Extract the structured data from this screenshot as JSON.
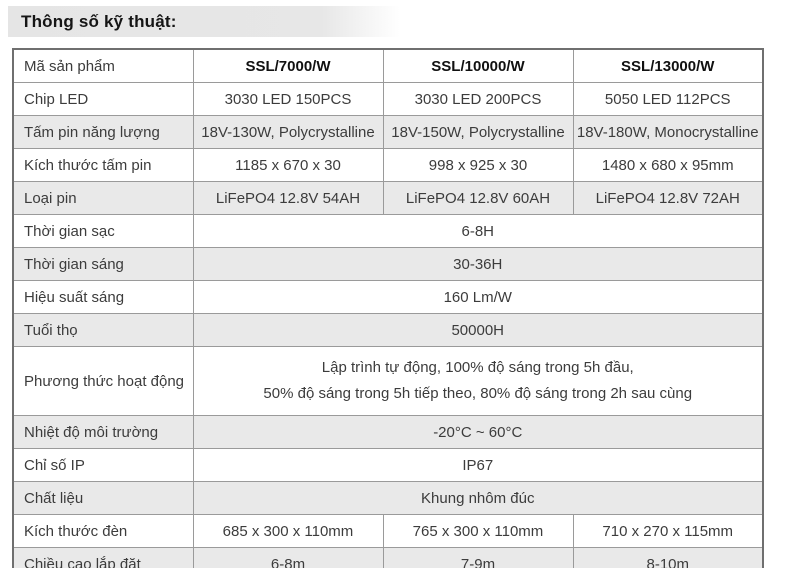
{
  "title": "Thông số kỹ thuật:",
  "colors": {
    "row_shade": "#e9e9e9",
    "border_inner": "#9a9a9a",
    "border_outer": "#6f6f6f",
    "title_bar": "#e6e6e6",
    "text": "#3c3c3c"
  },
  "table": {
    "header": {
      "label": "Mã sản phẩm",
      "columns": [
        "SSL/7000/W",
        "SSL/10000/W",
        "SSL/13000/W"
      ]
    },
    "rows": [
      {
        "label": "Chip LED",
        "shade": false,
        "values": [
          "3030 LED 150PCS",
          "3030 LED 200PCS",
          "5050 LED 112PCS"
        ]
      },
      {
        "label": "Tấm pin năng lượng",
        "shade": true,
        "values": [
          "18V-130W, Polycrystalline",
          "18V-150W, Polycrystalline",
          "18V-180W, Monocrystalline"
        ]
      },
      {
        "label": "Kích thước tấm pin",
        "shade": false,
        "values": [
          "1185 x 670 x 30",
          "998 x 925 x 30",
          "1480 x 680 x 95mm"
        ]
      },
      {
        "label": "Loại pin",
        "shade": true,
        "values": [
          "LiFePO4 12.8V 54AH",
          "LiFePO4 12.8V 60AH",
          "LiFePO4 12.8V 72AH"
        ]
      },
      {
        "label": "Thời gian sạc",
        "shade": false,
        "span": "6-8H"
      },
      {
        "label": "Thời gian sáng",
        "shade": true,
        "span": "30-36H"
      },
      {
        "label": "Hiệu suất sáng",
        "shade": false,
        "span": "160 Lm/W"
      },
      {
        "label": "Tuổi thọ",
        "shade": true,
        "span": "50000H"
      },
      {
        "label": "Phương thức hoạt động",
        "shade": false,
        "span_lines": [
          "Lập trình tự động, 100% độ sáng trong 5h đầu,",
          "50% độ sáng trong 5h tiếp theo, 80% độ sáng trong 2h sau cùng"
        ]
      },
      {
        "label": "Nhiệt độ môi trường",
        "shade": true,
        "span": "-20°C ~ 60°C"
      },
      {
        "label": "Chỉ số IP",
        "shade": false,
        "span": "IP67"
      },
      {
        "label": "Chất liệu",
        "shade": true,
        "span": "Khung nhôm đúc"
      },
      {
        "label": "Kích thước đèn",
        "shade": false,
        "values": [
          "685 x 300 x 110mm",
          "765 x 300 x 110mm",
          "710 x 270 x 115mm"
        ]
      },
      {
        "label": "Chiều cao lắp đặt",
        "shade": true,
        "values": [
          "6-8m",
          "7-9m",
          "8-10m"
        ]
      }
    ]
  }
}
